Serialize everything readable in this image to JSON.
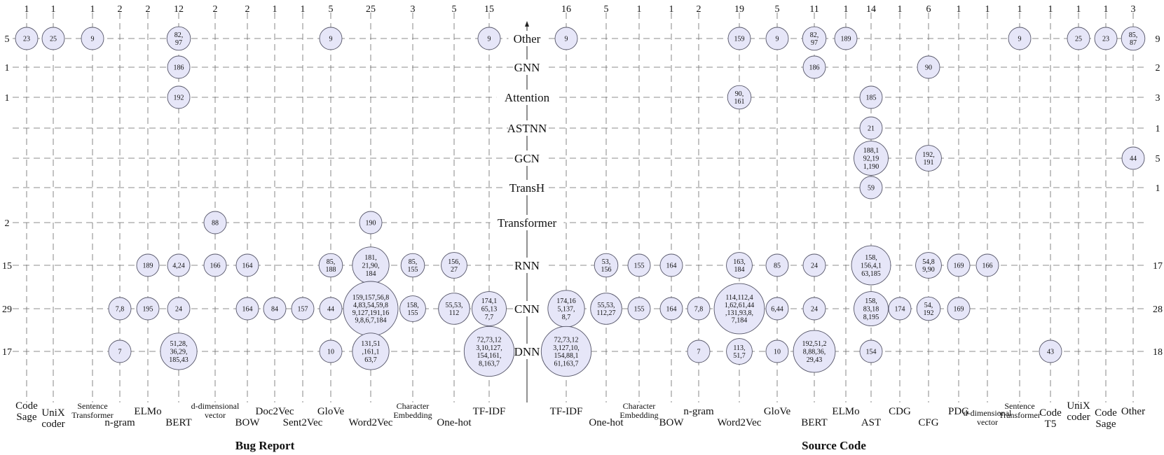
{
  "chart_data": {
    "type": "bubble-matrix",
    "sections": [
      "Bug Report",
      "Source Code"
    ],
    "rows": [
      "Other",
      "GNN",
      "Attention",
      "ASTNN",
      "GCN",
      "TransH",
      "Transformer",
      "RNN",
      "CNN",
      "DNN"
    ],
    "left_row_counts": [
      "5",
      "1",
      "1",
      "",
      "",
      "",
      "2",
      "15",
      "29",
      "17"
    ],
    "right_row_counts": [
      "9",
      "2",
      "3",
      "1",
      "5",
      "1",
      "",
      "17",
      "28",
      "18"
    ],
    "bug_report_columns": [
      {
        "label": "Code\nSage",
        "count": "1"
      },
      {
        "label": "UniX\ncoder",
        "count": "1"
      },
      {
        "label": "Sentence\nTransformer",
        "count": "1"
      },
      {
        "label": "n-gram",
        "count": "2"
      },
      {
        "label": "ELMo",
        "count": "2"
      },
      {
        "label": "BERT",
        "count": "12"
      },
      {
        "label": "d-dimensional\nvector",
        "count": "2"
      },
      {
        "label": "BOW",
        "count": "2"
      },
      {
        "label": "Doc2Vec",
        "count": "1"
      },
      {
        "label": "Sent2Vec",
        "count": "1"
      },
      {
        "label": "GloVe",
        "count": "5"
      },
      {
        "label": "Word2Vec",
        "count": "25"
      },
      {
        "label": "Character\nEmbedding",
        "count": "3"
      },
      {
        "label": "One-hot",
        "count": "5"
      },
      {
        "label": "TF-IDF",
        "count": "15"
      }
    ],
    "source_code_columns": [
      {
        "label": "TF-IDF",
        "count": "16"
      },
      {
        "label": "One-hot",
        "count": "5"
      },
      {
        "label": "Character\nEmbedding",
        "count": "1"
      },
      {
        "label": "BOW",
        "count": "1"
      },
      {
        "label": "n-gram",
        "count": "2"
      },
      {
        "label": "Word2Vec",
        "count": "19"
      },
      {
        "label": "GloVe",
        "count": "5"
      },
      {
        "label": "BERT",
        "count": "11"
      },
      {
        "label": "ELMo",
        "count": "1"
      },
      {
        "label": "AST",
        "count": "14"
      },
      {
        "label": "CDG",
        "count": "1"
      },
      {
        "label": "CFG",
        "count": "6"
      },
      {
        "label": "PDG",
        "count": "1"
      },
      {
        "label": "d-dimensional\nvector",
        "count": "1"
      },
      {
        "label": "Sentence\nTransformer",
        "count": "1"
      },
      {
        "label": "Code\nT5",
        "count": "1"
      },
      {
        "label": "UniX\ncoder",
        "count": "1"
      },
      {
        "label": "Code\nSage",
        "count": "1"
      },
      {
        "label": "Other",
        "count": "3"
      }
    ],
    "cells": [
      {
        "section": 0,
        "col": 0,
        "row": "Other",
        "text": "23"
      },
      {
        "section": 0,
        "col": 1,
        "row": "Other",
        "text": "25"
      },
      {
        "section": 0,
        "col": 2,
        "row": "Other",
        "text": "9"
      },
      {
        "section": 0,
        "col": 5,
        "row": "Other",
        "text": "82,\n97"
      },
      {
        "section": 0,
        "col": 10,
        "row": "Other",
        "text": "9"
      },
      {
        "section": 0,
        "col": 14,
        "row": "Other",
        "text": "9"
      },
      {
        "section": 0,
        "col": 5,
        "row": "GNN",
        "text": "186"
      },
      {
        "section": 0,
        "col": 5,
        "row": "Attention",
        "text": "192"
      },
      {
        "section": 0,
        "col": 6,
        "row": "Transformer",
        "text": "88"
      },
      {
        "section": 0,
        "col": 11,
        "row": "Transformer",
        "text": "190"
      },
      {
        "section": 0,
        "col": 4,
        "row": "RNN",
        "text": "189"
      },
      {
        "section": 0,
        "col": 5,
        "row": "RNN",
        "text": "4,24"
      },
      {
        "section": 0,
        "col": 6,
        "row": "RNN",
        "text": "166"
      },
      {
        "section": 0,
        "col": 7,
        "row": "RNN",
        "text": "164"
      },
      {
        "section": 0,
        "col": 10,
        "row": "RNN",
        "text": "85,\n188"
      },
      {
        "section": 0,
        "col": 11,
        "row": "RNN",
        "text": "181,\n21,90,\n184"
      },
      {
        "section": 0,
        "col": 12,
        "row": "RNN",
        "text": "85,\n155"
      },
      {
        "section": 0,
        "col": 13,
        "row": "RNN",
        "text": "156,\n27"
      },
      {
        "section": 0,
        "col": 3,
        "row": "CNN",
        "text": "7,8"
      },
      {
        "section": 0,
        "col": 4,
        "row": "CNN",
        "text": "195"
      },
      {
        "section": 0,
        "col": 5,
        "row": "CNN",
        "text": "24"
      },
      {
        "section": 0,
        "col": 7,
        "row": "CNN",
        "text": "164"
      },
      {
        "section": 0,
        "col": 8,
        "row": "CNN",
        "text": "84"
      },
      {
        "section": 0,
        "col": 9,
        "row": "CNN",
        "text": "157"
      },
      {
        "section": 0,
        "col": 10,
        "row": "CNN",
        "text": "44"
      },
      {
        "section": 0,
        "col": 11,
        "row": "CNN",
        "text": "159,157,56,8\n4,83,54,59,8\n9,127,191,16\n9,8,6,7,184"
      },
      {
        "section": 0,
        "col": 12,
        "row": "CNN",
        "text": "158,\n155"
      },
      {
        "section": 0,
        "col": 13,
        "row": "CNN",
        "text": "55,53,\n112"
      },
      {
        "section": 0,
        "col": 14,
        "row": "CNN",
        "text": "174,1\n65,13\n7,7"
      },
      {
        "section": 0,
        "col": 3,
        "row": "DNN",
        "text": "7"
      },
      {
        "section": 0,
        "col": 5,
        "row": "DNN",
        "text": "51,28,\n36,29,\n185,43"
      },
      {
        "section": 0,
        "col": 10,
        "row": "DNN",
        "text": "10"
      },
      {
        "section": 0,
        "col": 11,
        "row": "DNN",
        "text": "131,51\n,161,1\n63,7"
      },
      {
        "section": 0,
        "col": 14,
        "row": "DNN",
        "text": "72,73,12\n3,10,127,\n154,161,\n8,163,7"
      },
      {
        "section": 1,
        "col": 0,
        "row": "Other",
        "text": "9"
      },
      {
        "section": 1,
        "col": 5,
        "row": "Other",
        "text": "159"
      },
      {
        "section": 1,
        "col": 6,
        "row": "Other",
        "text": "9"
      },
      {
        "section": 1,
        "col": 7,
        "row": "Other",
        "text": "82,\n97"
      },
      {
        "section": 1,
        "col": 8,
        "row": "Other",
        "text": "189"
      },
      {
        "section": 1,
        "col": 14,
        "row": "Other",
        "text": "9"
      },
      {
        "section": 1,
        "col": 16,
        "row": "Other",
        "text": "25"
      },
      {
        "section": 1,
        "col": 17,
        "row": "Other",
        "text": "23"
      },
      {
        "section": 1,
        "col": 18,
        "row": "Other",
        "text": "85,\n87"
      },
      {
        "section": 1,
        "col": 7,
        "row": "GNN",
        "text": "186"
      },
      {
        "section": 1,
        "col": 11,
        "row": "GNN",
        "text": "90"
      },
      {
        "section": 1,
        "col": 5,
        "row": "Attention",
        "text": "90,\n161"
      },
      {
        "section": 1,
        "col": 9,
        "row": "Attention",
        "text": "185"
      },
      {
        "section": 1,
        "col": 9,
        "row": "ASTNN",
        "text": "21"
      },
      {
        "section": 1,
        "col": 9,
        "row": "GCN",
        "text": "188,1\n92,19\n1,190"
      },
      {
        "section": 1,
        "col": 11,
        "row": "GCN",
        "text": "192,\n191"
      },
      {
        "section": 1,
        "col": 18,
        "row": "GCN",
        "text": "44"
      },
      {
        "section": 1,
        "col": 9,
        "row": "TransH",
        "text": "59"
      },
      {
        "section": 1,
        "col": 1,
        "row": "RNN",
        "text": "53,\n156"
      },
      {
        "section": 1,
        "col": 2,
        "row": "RNN",
        "text": "155"
      },
      {
        "section": 1,
        "col": 3,
        "row": "RNN",
        "text": "164"
      },
      {
        "section": 1,
        "col": 5,
        "row": "RNN",
        "text": "163,\n184"
      },
      {
        "section": 1,
        "col": 6,
        "row": "RNN",
        "text": "85"
      },
      {
        "section": 1,
        "col": 7,
        "row": "RNN",
        "text": "24"
      },
      {
        "section": 1,
        "col": 9,
        "row": "RNN",
        "text": "158,\n156,4,1\n63,185"
      },
      {
        "section": 1,
        "col": 11,
        "row": "RNN",
        "text": "54,8\n9,90"
      },
      {
        "section": 1,
        "col": 12,
        "row": "RNN",
        "text": "169"
      },
      {
        "section": 1,
        "col": 13,
        "row": "RNN",
        "text": "166"
      },
      {
        "section": 1,
        "col": 0,
        "row": "CNN",
        "text": "174,16\n5,137,\n8,7"
      },
      {
        "section": 1,
        "col": 1,
        "row": "CNN",
        "text": "55,53,\n112,27"
      },
      {
        "section": 1,
        "col": 2,
        "row": "CNN",
        "text": "155"
      },
      {
        "section": 1,
        "col": 3,
        "row": "CNN",
        "text": "164"
      },
      {
        "section": 1,
        "col": 4,
        "row": "CNN",
        "text": "7,8"
      },
      {
        "section": 1,
        "col": 5,
        "row": "CNN",
        "text": "114,112,4\n1,62,61,44\n,131,93,8,\n7,184"
      },
      {
        "section": 1,
        "col": 6,
        "row": "CNN",
        "text": "6,44"
      },
      {
        "section": 1,
        "col": 7,
        "row": "CNN",
        "text": "24"
      },
      {
        "section": 1,
        "col": 9,
        "row": "CNN",
        "text": "158,\n83,18\n8,195"
      },
      {
        "section": 1,
        "col": 10,
        "row": "CNN",
        "text": "174"
      },
      {
        "section": 1,
        "col": 11,
        "row": "CNN",
        "text": "54,\n192"
      },
      {
        "section": 1,
        "col": 12,
        "row": "CNN",
        "text": "169"
      },
      {
        "section": 1,
        "col": 0,
        "row": "DNN",
        "text": "72,73,12\n3,127,10,\n154,88,1\n61,163,7"
      },
      {
        "section": 1,
        "col": 4,
        "row": "DNN",
        "text": "7"
      },
      {
        "section": 1,
        "col": 5,
        "row": "DNN",
        "text": "113,\n51,7"
      },
      {
        "section": 1,
        "col": 6,
        "row": "DNN",
        "text": "10"
      },
      {
        "section": 1,
        "col": 7,
        "row": "DNN",
        "text": "192,51,2\n8,88,36,\n29,43"
      },
      {
        "section": 1,
        "col": 9,
        "row": "DNN",
        "text": "154"
      },
      {
        "section": 1,
        "col": 15,
        "row": "DNN",
        "text": "43"
      }
    ]
  }
}
